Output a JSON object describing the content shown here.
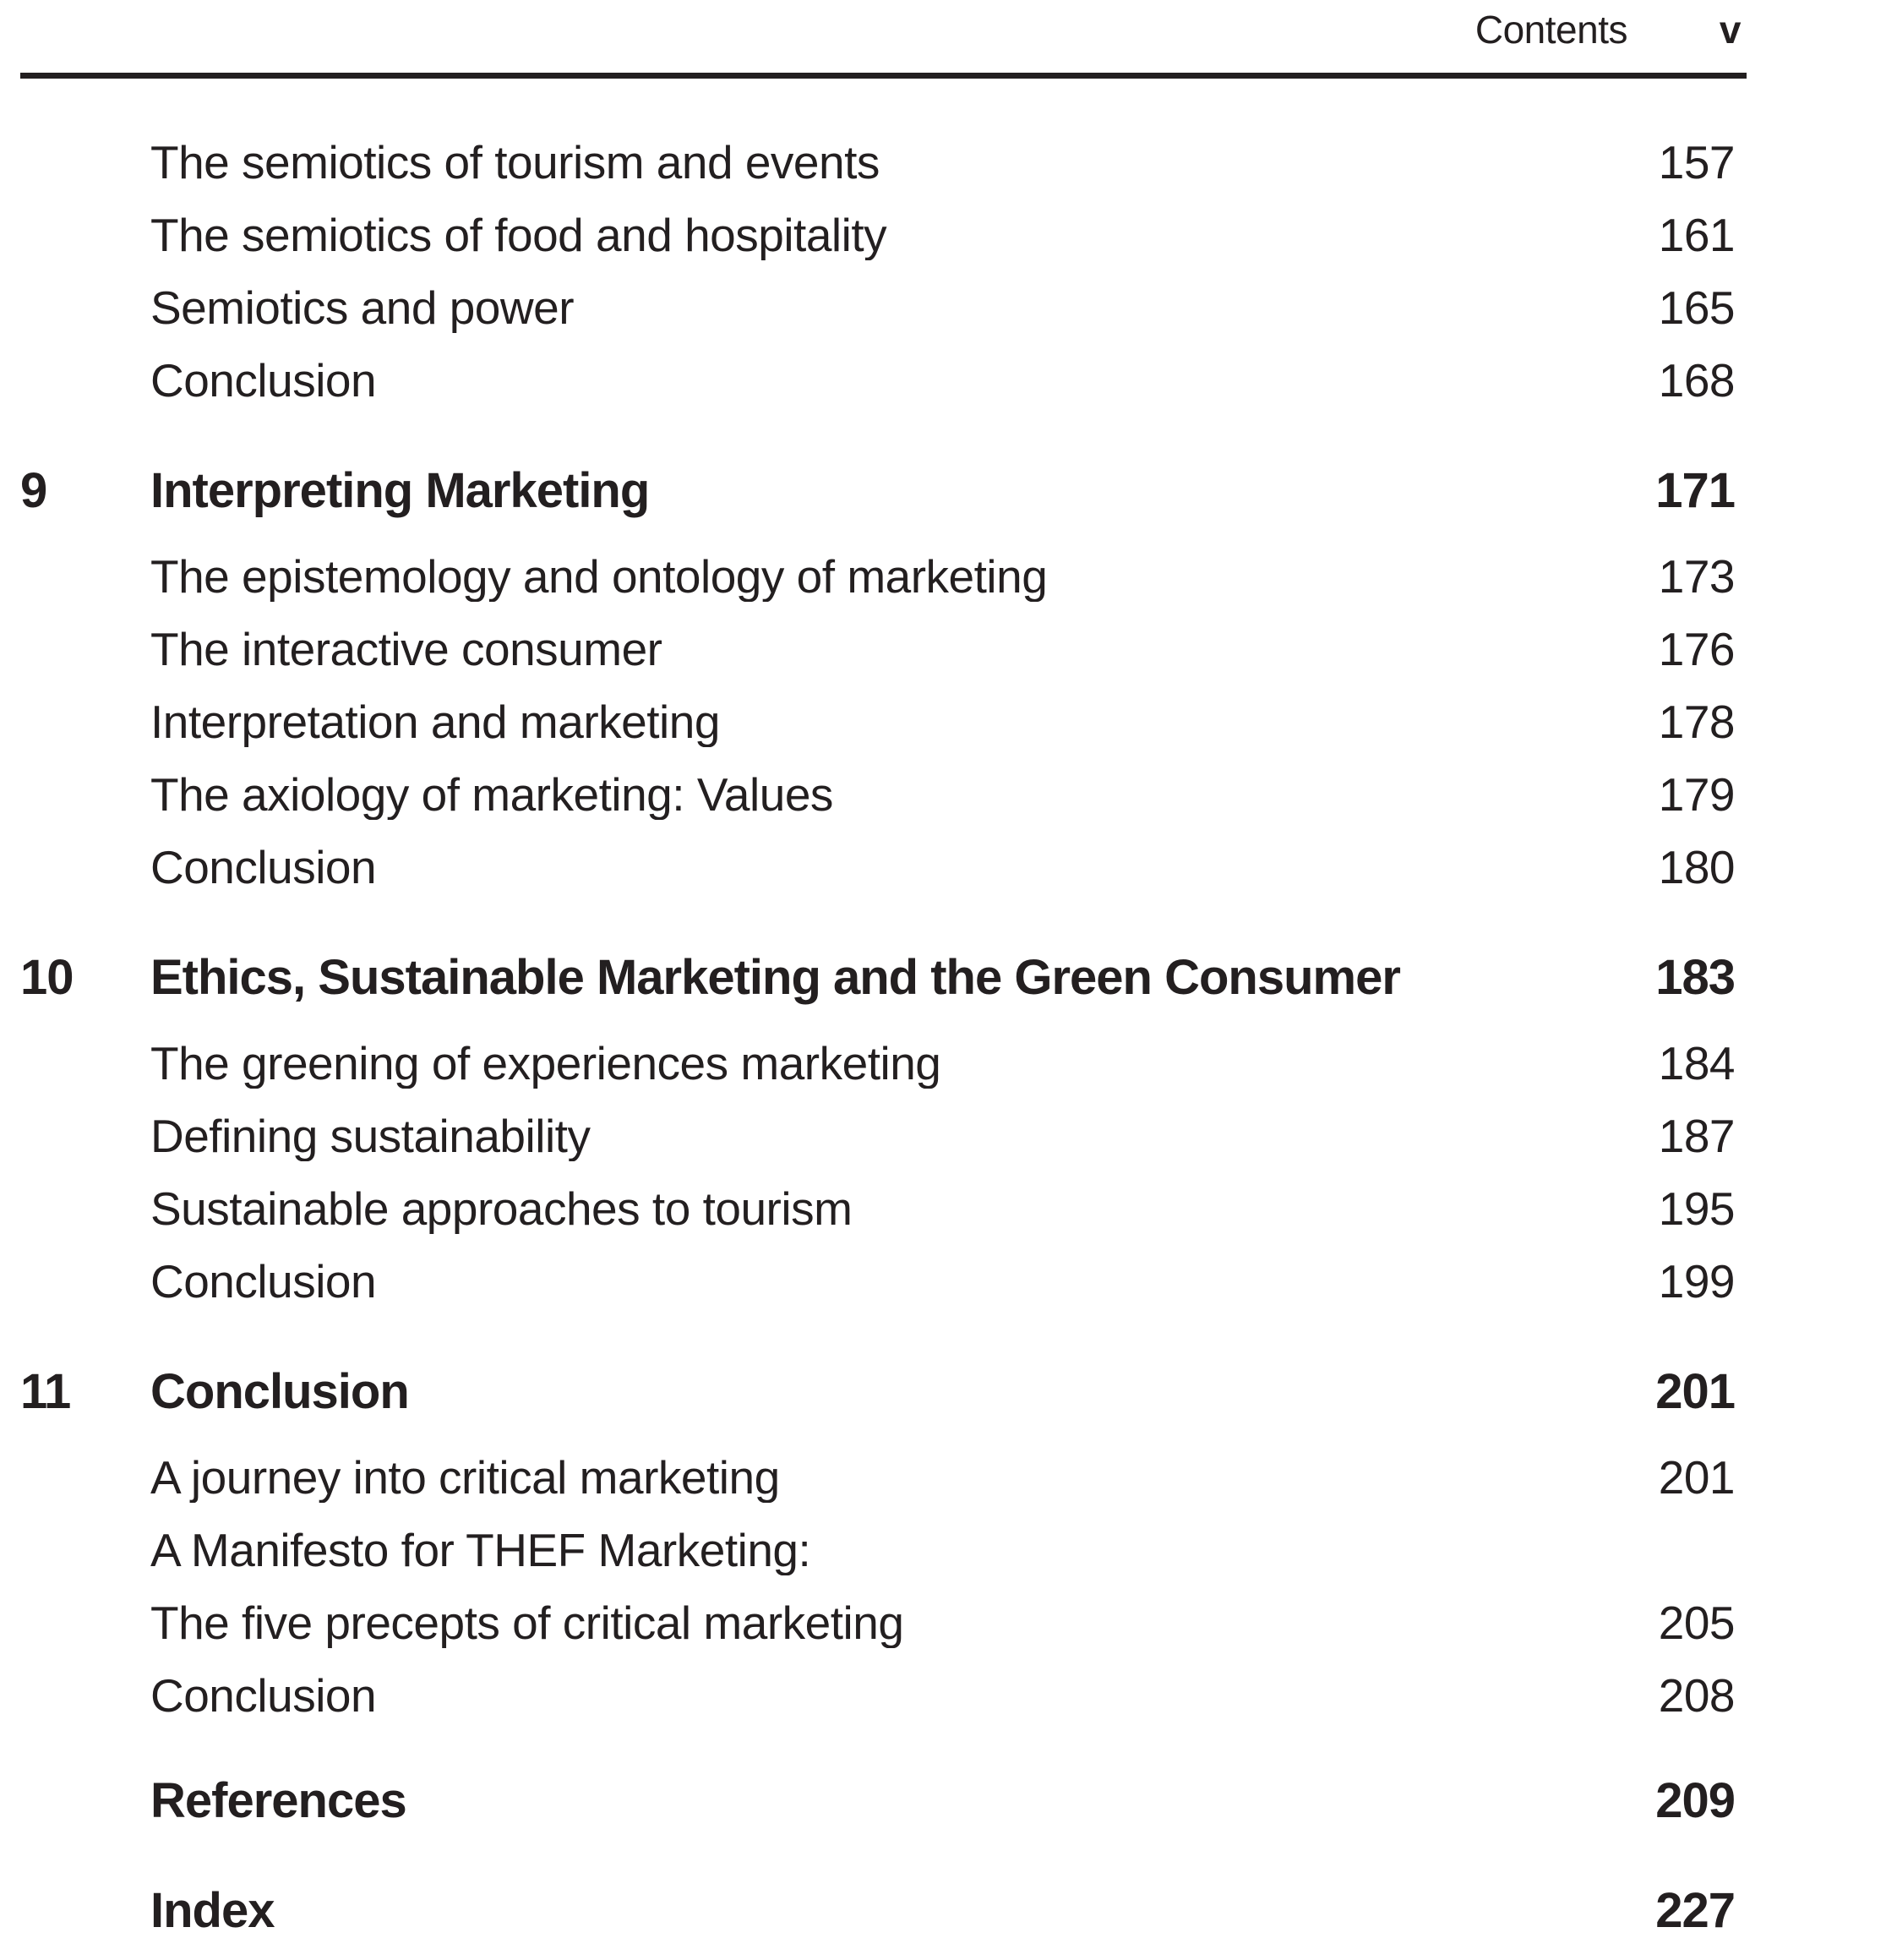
{
  "header": {
    "running_head": "Contents",
    "folio": "v"
  },
  "toc": {
    "entries": [
      {
        "type": "sub",
        "label": "The semiotics of tourism and events",
        "page": "157"
      },
      {
        "type": "sub",
        "label": "The semiotics of food and hospitality",
        "page": "161"
      },
      {
        "type": "sub",
        "label": "Semiotics and power",
        "page": "165"
      },
      {
        "type": "sub",
        "label": "Conclusion",
        "page": "168"
      },
      {
        "type": "chapter",
        "num": "9",
        "label": "Interpreting Marketing",
        "page": "171"
      },
      {
        "type": "sub",
        "label": "The epistemology and ontology of marketing",
        "page": "173"
      },
      {
        "type": "sub",
        "label": "The interactive consumer",
        "page": "176"
      },
      {
        "type": "sub",
        "label": "Interpretation and marketing",
        "page": "178"
      },
      {
        "type": "sub",
        "label": "The axiology of marketing: Values",
        "page": "179"
      },
      {
        "type": "sub",
        "label": "Conclusion",
        "page": "180"
      },
      {
        "type": "chapter",
        "num": "10",
        "label": "Ethics, Sustainable Marketing and the Green Consumer",
        "page": "183"
      },
      {
        "type": "sub",
        "label": "The greening of experiences marketing",
        "page": "184"
      },
      {
        "type": "sub",
        "label": "Defining sustainability",
        "page": "187"
      },
      {
        "type": "sub",
        "label": "Sustainable approaches to tourism",
        "page": "195"
      },
      {
        "type": "sub",
        "label": "Conclusion",
        "page": "199"
      },
      {
        "type": "chapter",
        "num": "11",
        "label": "Conclusion",
        "page": "201"
      },
      {
        "type": "sub",
        "label": "A journey into critical marketing",
        "page": "201"
      },
      {
        "type": "sub",
        "label": "A Manifesto for THEF Marketing:",
        "page": ""
      },
      {
        "type": "sub",
        "label": "The five precepts of critical marketing",
        "page": "205"
      },
      {
        "type": "sub",
        "label": "Conclusion",
        "page": "208"
      },
      {
        "type": "chapter",
        "num": "",
        "label": "References",
        "page": "209"
      },
      {
        "type": "chapter",
        "num": "",
        "label": "Index",
        "page": "227"
      }
    ]
  },
  "colors": {
    "text": "#231f20",
    "background": "#ffffff",
    "rule": "#231f20"
  }
}
